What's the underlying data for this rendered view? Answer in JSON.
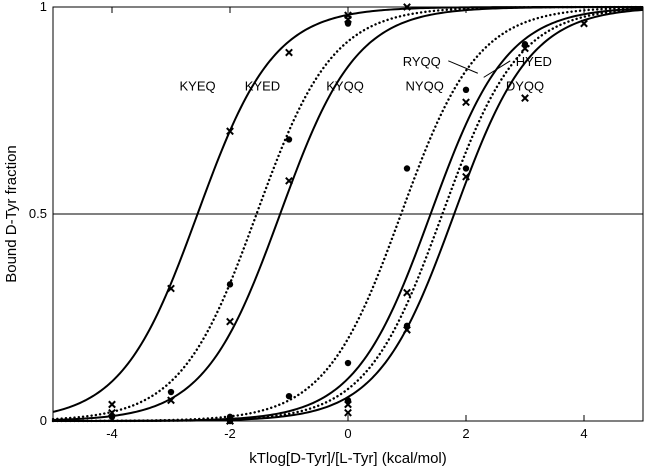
{
  "chart_data": {
    "type": "scatter",
    "title": "",
    "xlabel": "kTlog[D-Tyr]/[L-Tyr] (kcal/mol)",
    "ylabel": "Bound D-Tyr fraction",
    "xlim": [
      -5,
      5
    ],
    "ylim": [
      0,
      1
    ],
    "xticks": [
      -4,
      -2,
      0,
      2,
      4
    ],
    "xtick_labels": [
      "-4",
      "-2",
      "0",
      "2",
      "4"
    ],
    "yticks": [
      0,
      0.5,
      1
    ],
    "ytick_labels": [
      "0",
      "0.5",
      "1"
    ],
    "reference_line_y": 0.5,
    "grid": false,
    "series": [
      {
        "name": "KYEQ",
        "line_style": "solid",
        "marker": "cross",
        "midpoint": -2.55,
        "slope": 1.55,
        "points": [
          [
            -4,
            0.04
          ],
          [
            -3,
            0.32
          ],
          [
            -2,
            0.7
          ],
          [
            -1,
            0.89
          ],
          [
            0,
            0.98
          ]
        ]
      },
      {
        "name": "KYED",
        "line_style": "dotted",
        "marker": "dot",
        "midpoint": -1.55,
        "slope": 1.55,
        "points": [
          [
            -4,
            0.01
          ],
          [
            -3,
            0.07
          ],
          [
            -2,
            0.33
          ],
          [
            -1,
            0.68
          ],
          [
            0,
            0.96
          ]
        ]
      },
      {
        "name": "KYQQ",
        "line_style": "solid",
        "marker": "cross",
        "midpoint": -1.15,
        "slope": 1.55,
        "points": [
          [
            -4,
            0.02
          ],
          [
            -3,
            0.05
          ],
          [
            -2,
            0.24
          ],
          [
            -1,
            0.58
          ],
          [
            0,
            0.97
          ],
          [
            1,
            1.0
          ]
        ]
      },
      {
        "name": "NYQQ",
        "line_style": "dotted",
        "marker": "dot",
        "midpoint": 0.9,
        "slope": 1.55,
        "points": [
          [
            -2,
            0.01
          ],
          [
            -1,
            0.06
          ],
          [
            0,
            0.14
          ],
          [
            1,
            0.61
          ],
          [
            2,
            0.8
          ]
        ]
      },
      {
        "name": "RYQQ",
        "line_style": "solid",
        "marker": "cross",
        "midpoint": 1.4,
        "slope": 1.55,
        "points": [
          [
            -2,
            0.0
          ],
          [
            0,
            0.04
          ],
          [
            1,
            0.31
          ],
          [
            2,
            0.77
          ],
          [
            3,
            0.9
          ]
        ]
      },
      {
        "name": "HYED",
        "line_style": "dotted",
        "marker": "dot",
        "midpoint": 1.6,
        "slope": 1.55,
        "points": [
          [
            -2,
            0.0
          ],
          [
            0,
            0.05
          ],
          [
            1,
            0.23
          ],
          [
            2,
            0.61
          ],
          [
            3,
            0.91
          ]
        ]
      },
      {
        "name": "DYQQ",
        "line_style": "solid",
        "marker": "cross",
        "midpoint": 1.8,
        "slope": 1.55,
        "points": [
          [
            -2,
            0.0
          ],
          [
            0,
            0.02
          ],
          [
            1,
            0.22
          ],
          [
            2,
            0.59
          ],
          [
            3,
            0.78
          ],
          [
            4,
            0.96
          ]
        ]
      }
    ],
    "annotations": [
      {
        "text": "KYEQ",
        "x": -2.55,
        "y": 0.81
      },
      {
        "text": "KYED",
        "x": -1.45,
        "y": 0.81
      },
      {
        "text": "KYQQ",
        "x": -0.05,
        "y": 0.81
      },
      {
        "text": "NYQQ",
        "x": 1.3,
        "y": 0.81
      },
      {
        "text": "RYQQ",
        "x": 1.25,
        "y": 0.87
      },
      {
        "text": "HYED",
        "x": 3.15,
        "y": 0.87
      },
      {
        "text": "DYQQ",
        "x": 3.0,
        "y": 0.81
      }
    ]
  }
}
